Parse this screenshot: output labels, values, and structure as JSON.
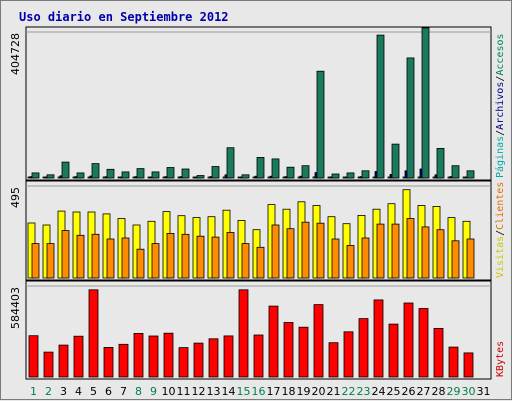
{
  "chart_data": {
    "type": "bar",
    "title": "Uso diario en Septiembre 2012",
    "days": [
      "1",
      "2",
      "3",
      "4",
      "5",
      "6",
      "7",
      "8",
      "9",
      "10",
      "11",
      "12",
      "13",
      "14",
      "15",
      "16",
      "17",
      "18",
      "19",
      "20",
      "21",
      "22",
      "23",
      "24",
      "25",
      "26",
      "27",
      "28",
      "29",
      "30",
      "31"
    ],
    "weekend_days": [
      "1",
      "2",
      "8",
      "9",
      "15",
      "16",
      "22",
      "23",
      "29",
      "30"
    ],
    "panels": [
      {
        "name": "pages_hits",
        "y_tick_label": "404728",
        "y_max": 404728,
        "side_labels": [
          {
            "text": "Páginas",
            "color": "#00aaaa"
          },
          {
            "text": "/",
            "color": "#000000"
          },
          {
            "text": "Archivos",
            "color": "#000080"
          },
          {
            "text": "/",
            "color": "#000000"
          },
          {
            "text": "Accesos",
            "color": "#00805a"
          }
        ],
        "series": [
          {
            "name": "Páginas",
            "color": "#00c8c8",
            "values": [
              1000,
              800,
              1400,
              1100,
              1300,
              1000,
              900,
              1000,
              900,
              1000,
              1100,
              700,
              1000,
              1300,
              800,
              1200,
              1300,
              1100,
              1200,
              3000,
              1000,
              800,
              900,
              2000,
              1800,
              2200,
              2500,
              1400,
              1100,
              900,
              0
            ]
          },
          {
            "name": "Archivos",
            "color": "#000080",
            "values": [
              4000,
              2500,
              6000,
              4000,
              5500,
              3500,
              3000,
              4000,
              3000,
              4000,
              4000,
              2000,
              4000,
              9000,
              2500,
              5000,
              5000,
              4000,
              5000,
              15000,
              3000,
              3000,
              4000,
              18000,
              10000,
              20000,
              25000,
              9000,
              4000,
              3000,
              0
            ]
          },
          {
            "name": "Accesos",
            "color": "#1a7a5e",
            "values": [
              14000,
              9000,
              44000,
              14000,
              40000,
              24000,
              17000,
              26000,
              17000,
              29000,
              25000,
              7000,
              32000,
              84000,
              9000,
              57000,
              53000,
              30000,
              34000,
              296000,
              11000,
              14000,
              20000,
              396000,
              94000,
              333000,
              416000,
              82000,
              34000,
              20000,
              0
            ]
          }
        ]
      },
      {
        "name": "visits",
        "y_tick_label": "495",
        "y_max": 495,
        "side_labels": [
          {
            "text": "Visitas",
            "color": "#c8c800"
          },
          {
            "text": "/",
            "color": "#000000"
          },
          {
            "text": "Clientes",
            "color": "#e07000"
          }
        ],
        "series": [
          {
            "name": "Visitas",
            "color": "#ffff00",
            "values": [
              296,
              285,
              360,
              355,
              355,
              345,
              320,
              285,
              305,
              357,
              335,
              325,
              330,
              365,
              310,
              260,
              395,
              370,
              410,
              390,
              330,
              292,
              337,
              370,
              400,
              475,
              390,
              385,
              325,
              305,
              0
            ]
          },
          {
            "name": "Clientes",
            "color": "#ff8c00",
            "values": [
              185,
              185,
              255,
              230,
              235,
              210,
              215,
              155,
              185,
              240,
              235,
              225,
              220,
              245,
              185,
              165,
              285,
              265,
              300,
              295,
              210,
              175,
              215,
              290,
              290,
              320,
              275,
              260,
              200,
              210,
              0
            ]
          }
        ]
      },
      {
        "name": "kbytes",
        "y_tick_label": "584403",
        "y_max": 584403,
        "side_labels": [
          {
            "text": "KBytes",
            "color": "#cc0000"
          }
        ],
        "series": [
          {
            "name": "KBytes",
            "color": "#ff0000",
            "values": [
              265000,
              160000,
              205000,
              262000,
              560000,
              190000,
              210000,
              280000,
              263000,
              281000,
              189000,
              218000,
              245000,
              264000,
              560000,
              270000,
              455000,
              350000,
              320000,
              465000,
              220000,
              290000,
              375000,
              495000,
              340000,
              475000,
              440000,
              312000,
              192000,
              155000,
              0
            ]
          }
        ]
      }
    ]
  }
}
